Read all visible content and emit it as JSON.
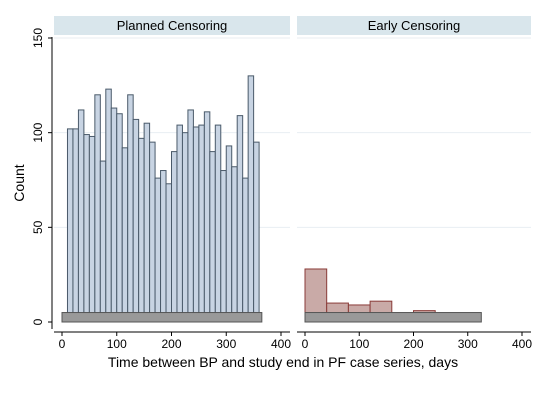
{
  "chart_data": {
    "type": "bar",
    "xlabel": "Time between BP and study end in PF case series, days",
    "ylabel": "Count",
    "ylim": [
      0,
      150
    ],
    "xlim": [
      0,
      400
    ],
    "yticks": [
      0,
      50,
      100,
      150
    ],
    "xticks": [
      0,
      100,
      200,
      300,
      400
    ],
    "grid": true,
    "panels": [
      {
        "title": "Planned Censoring",
        "bar_fill": "#c8d4e3",
        "bar_stroke": "#4a5a6a",
        "bin_width": 10,
        "x": [
          10,
          20,
          30,
          40,
          50,
          60,
          70,
          80,
          90,
          100,
          110,
          120,
          130,
          140,
          150,
          160,
          170,
          180,
          190,
          200,
          210,
          220,
          230,
          240,
          250,
          260,
          270,
          280,
          290,
          300,
          310,
          320,
          330,
          340,
          350,
          360
        ],
        "values": [
          102,
          102,
          112,
          99,
          98,
          120,
          85,
          123,
          113,
          110,
          92,
          120,
          107,
          97,
          105,
          95,
          76,
          80,
          73,
          90,
          104,
          100,
          112,
          103,
          104,
          111,
          90,
          104,
          80,
          93,
          82,
          109,
          76,
          130,
          95,
          0
        ],
        "band": {
          "x0": 0,
          "x1": 365,
          "y0": 0,
          "y1": 5
        }
      },
      {
        "title": "Early Censoring",
        "bar_fill": "#c9aaa7",
        "bar_stroke": "#8a3b38",
        "bin_width": 40,
        "x": [
          0,
          40,
          80,
          120,
          160,
          200
        ],
        "values": [
          28,
          10,
          9,
          11,
          4,
          6
        ],
        "band": {
          "x0": 0,
          "x1": 325,
          "y0": 0,
          "y1": 5
        }
      }
    ]
  },
  "colors": {
    "panel_header": "#d9e6ec",
    "gridline": "#e8eef2",
    "band_fill": "#999999",
    "band_stroke": "#555555"
  }
}
